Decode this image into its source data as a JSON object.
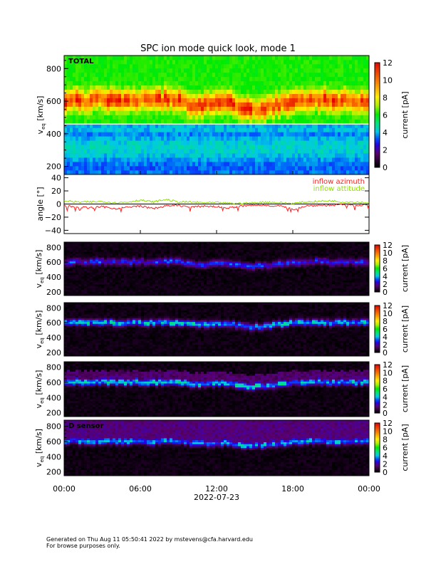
{
  "footer": {
    "line1": "Generated on Thu Aug 11 05:50:41 2022 by mstevens@cfa.harvard.edu",
    "line2": "For browse purposes only."
  },
  "chart_data": [
    {
      "type": "heatmap",
      "title": "SPC ion mode quick look, mode 1",
      "panel_label": "TOTAL",
      "ylabel": "v_eq [km/s]",
      "ylim": [
        150,
        880
      ],
      "yticks": [
        "200",
        "400",
        "600",
        "800"
      ],
      "colorbar": {
        "label": "current [pA]",
        "range": [
          0,
          12
        ],
        "ticks": [
          "0",
          "2",
          "4",
          "6",
          "8",
          "10",
          "12"
        ]
      },
      "background_current": 5.8,
      "peak_current": 10.5
    },
    {
      "type": "line",
      "ylabel": "angle [°]",
      "ylim": [
        -45,
        45
      ],
      "yticks": [
        "-40",
        "-20",
        "0",
        "20",
        "40"
      ],
      "x_hours": [
        0,
        1,
        2,
        3,
        4,
        5,
        6,
        7,
        8,
        9,
        10,
        11,
        12,
        13,
        14,
        15,
        16,
        17,
        18,
        19,
        20,
        21,
        22,
        23,
        24
      ],
      "series": [
        {
          "name": "inflow azimuth",
          "color": "#ff2020",
          "values": [
            -3,
            -4,
            -6,
            -4,
            -7,
            -5,
            -3,
            -7,
            -3,
            -2,
            -5,
            -3,
            -4,
            -6,
            -3,
            -2,
            -2,
            -3,
            -8,
            -3,
            -2,
            -2,
            -1,
            -2,
            -1
          ]
        },
        {
          "name": "inflow attitude",
          "color": "#90e000",
          "values": [
            5,
            3,
            3,
            4,
            2,
            3,
            6,
            3,
            7,
            3,
            3,
            2,
            2,
            1,
            1,
            2,
            3,
            2,
            1,
            3,
            4,
            5,
            3,
            3,
            2
          ]
        }
      ]
    },
    {
      "type": "heatmap",
      "panel_label": "",
      "ylabel": "v_eq [km/s]",
      "yticks": [
        "200",
        "400",
        "600",
        "800"
      ],
      "peak_current": 2.6,
      "colorbar": {
        "label": "current [pA]",
        "ticks": [
          "0",
          "2",
          "4",
          "6",
          "8",
          "10",
          "12"
        ]
      }
    },
    {
      "type": "heatmap",
      "panel_label": "",
      "ylabel": "v_eq [km/s]",
      "yticks": [
        "200",
        "400",
        "600",
        "800"
      ],
      "peak_current": 3.8,
      "colorbar": {
        "label": "current [pA]",
        "ticks": [
          "0",
          "2",
          "4",
          "6",
          "8",
          "10",
          "12"
        ]
      }
    },
    {
      "type": "heatmap",
      "panel_label": "",
      "ylabel": "v_eq [km/s]",
      "yticks": [
        "200",
        "400",
        "600",
        "800"
      ],
      "peak_current": 3.9,
      "colorbar": {
        "label": "current [pA]",
        "ticks": [
          "0",
          "2",
          "4",
          "6",
          "8",
          "10",
          "12"
        ]
      }
    },
    {
      "type": "heatmap",
      "panel_label": "D sensor",
      "ylabel": "v_eq [km/s]",
      "yticks": [
        "200",
        "400",
        "600",
        "800"
      ],
      "peak_current": 3.5,
      "colorbar": {
        "label": "current [pA]",
        "ticks": [
          "0",
          "2",
          "4",
          "6",
          "8",
          "10",
          "12"
        ]
      }
    },
    {
      "type": "timeseries",
      "bulk_speed_x_hours": [
        0,
        1,
        2,
        3,
        4,
        5,
        6,
        7,
        8,
        9,
        10,
        11,
        12,
        13,
        14,
        15,
        16,
        17,
        18,
        19,
        20,
        21,
        22,
        23,
        24
      ],
      "bulk_speed_kms": [
        605,
        610,
        600,
        615,
        600,
        605,
        610,
        600,
        612,
        605,
        580,
        575,
        585,
        590,
        560,
        545,
        560,
        580,
        600,
        605,
        610,
        600,
        610,
        600,
        605
      ],
      "xticks": [
        "00:00",
        "06:00",
        "12:00",
        "18:00",
        "00:00"
      ],
      "xlabel": "2022-07-23"
    }
  ]
}
